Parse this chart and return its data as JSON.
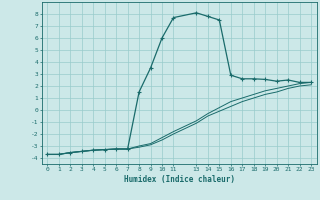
{
  "xlabel": "Humidex (Indice chaleur)",
  "bg_color": "#cce8e8",
  "grid_color": "#99cccc",
  "line_color": "#1a6b6b",
  "xlim": [
    -0.5,
    23.5
  ],
  "ylim": [
    -4.5,
    9.0
  ],
  "xtick_vals": [
    0,
    1,
    2,
    3,
    4,
    5,
    6,
    7,
    8,
    9,
    10,
    11,
    13,
    14,
    15,
    16,
    17,
    18,
    19,
    20,
    21,
    22,
    23
  ],
  "ytick_vals": [
    -4,
    -3,
    -2,
    -1,
    0,
    1,
    2,
    3,
    4,
    5,
    6,
    7,
    8
  ],
  "curve1_x": [
    0,
    1,
    2,
    3,
    4,
    5,
    6,
    7,
    8,
    9,
    10,
    11,
    13,
    14,
    15,
    16,
    17,
    18,
    19,
    20,
    21,
    22,
    23
  ],
  "curve1_y": [
    -3.7,
    -3.7,
    -3.55,
    -3.45,
    -3.35,
    -3.3,
    -3.25,
    -3.25,
    1.5,
    3.5,
    6.0,
    7.7,
    8.1,
    7.8,
    7.5,
    2.9,
    2.6,
    2.6,
    2.55,
    2.4,
    2.5,
    2.3,
    2.3
  ],
  "curve2_x": [
    0,
    1,
    2,
    3,
    4,
    5,
    6,
    7,
    8,
    9,
    10,
    11,
    13,
    14,
    15,
    16,
    17,
    18,
    19,
    20,
    21,
    22,
    23
  ],
  "curve2_y": [
    -3.7,
    -3.7,
    -3.55,
    -3.45,
    -3.35,
    -3.3,
    -3.25,
    -3.25,
    -3.0,
    -2.8,
    -2.3,
    -1.8,
    -0.9,
    -0.3,
    0.2,
    0.7,
    1.0,
    1.3,
    1.6,
    1.8,
    2.0,
    2.2,
    2.3
  ],
  "curve3_x": [
    0,
    1,
    2,
    3,
    4,
    5,
    6,
    7,
    8,
    9,
    10,
    11,
    13,
    14,
    15,
    16,
    17,
    18,
    19,
    20,
    21,
    22,
    23
  ],
  "curve3_y": [
    -3.7,
    -3.7,
    -3.55,
    -3.45,
    -3.35,
    -3.3,
    -3.25,
    -3.25,
    -3.1,
    -2.9,
    -2.5,
    -2.0,
    -1.1,
    -0.5,
    -0.1,
    0.3,
    0.7,
    1.0,
    1.3,
    1.5,
    1.8,
    2.0,
    2.1
  ]
}
